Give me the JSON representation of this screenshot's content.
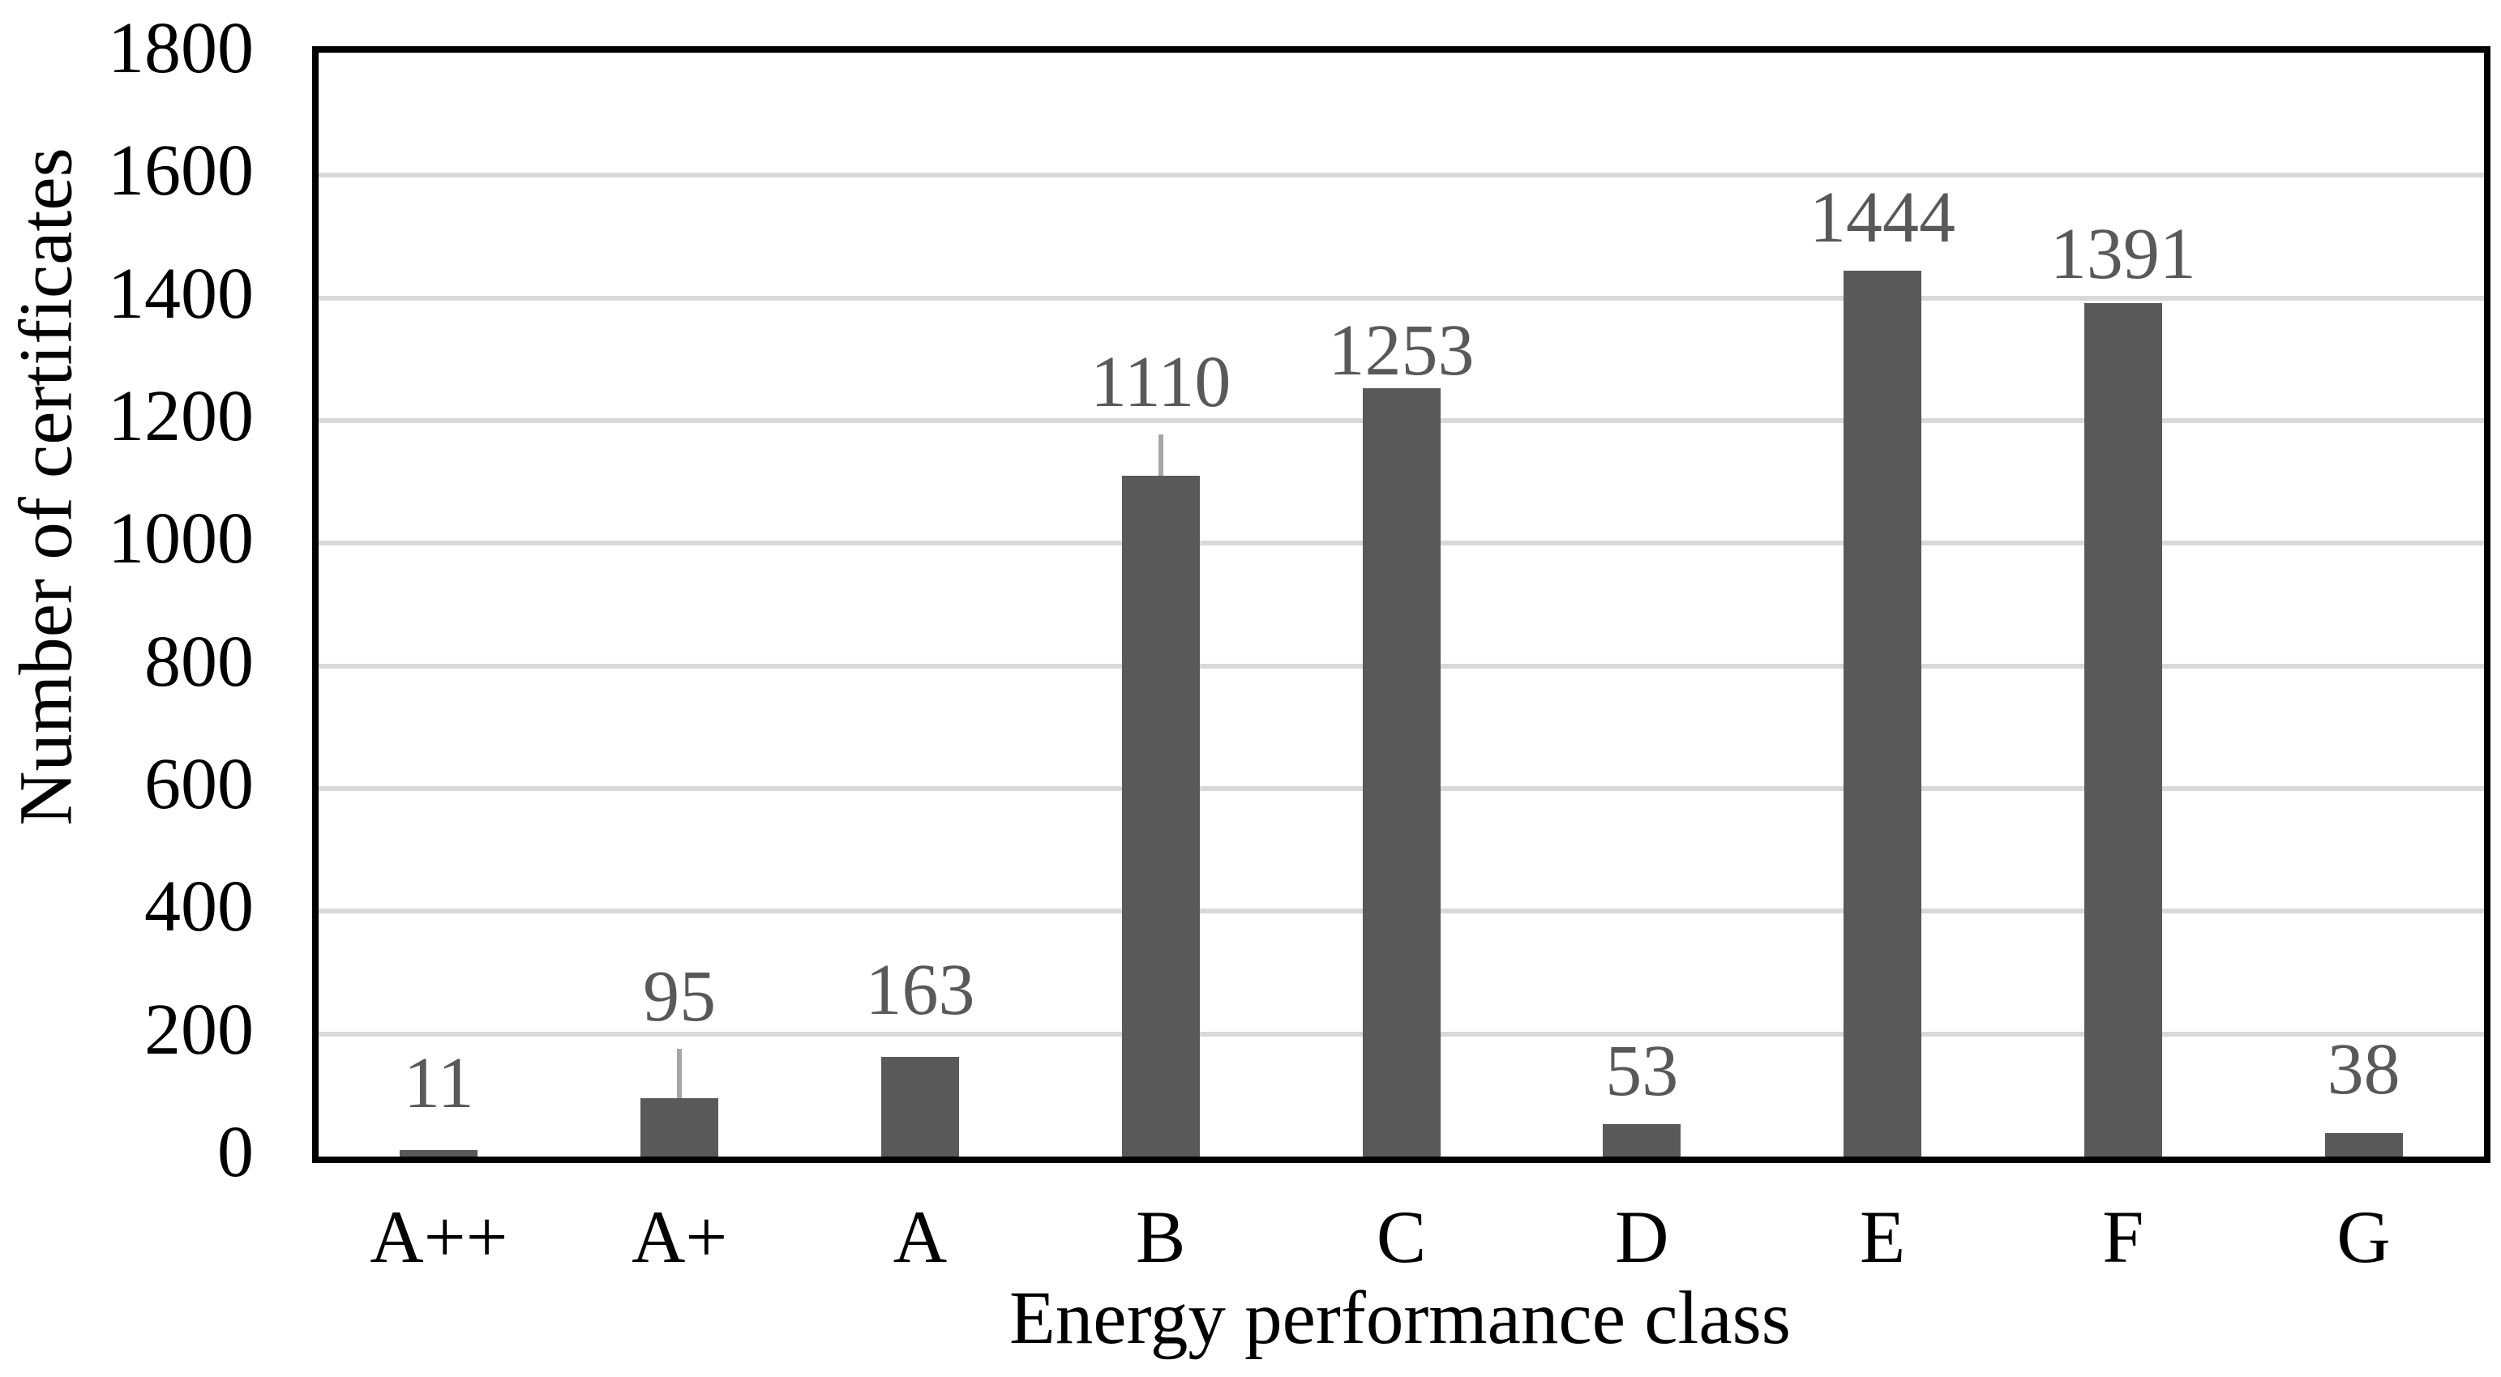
{
  "figure": {
    "background": "#ffffff",
    "bar_color": "#595959",
    "data_label_color": "#595959",
    "gridline_color": "#d9d9d9",
    "leader_line_color": "#a6a6a6",
    "axis_color": "#000000",
    "text_color": "#000000"
  },
  "chart_data": {
    "type": "bar",
    "title": "",
    "xlabel": "Energy performance class",
    "ylabel": "Number of certificates",
    "categories": [
      "A++",
      "A+",
      "A",
      "B",
      "C",
      "D",
      "E",
      "F",
      "G"
    ],
    "values": [
      11,
      95,
      163,
      1110,
      1253,
      53,
      1444,
      1391,
      38
    ],
    "ylim": [
      0,
      1800
    ],
    "ytick_step": 200,
    "yticks": [
      0,
      200,
      400,
      600,
      800,
      1000,
      1200,
      1400,
      1600,
      1800
    ],
    "grid": true,
    "legend": false,
    "points": [
      {
        "category": "A++",
        "value": 11,
        "label": "11",
        "label_gap": 47,
        "leader": false
      },
      {
        "category": "A+",
        "value": 95,
        "label": "95",
        "label_gap": 90,
        "leader": true
      },
      {
        "category": "A",
        "value": 163,
        "label": "163",
        "label_gap": 47,
        "leader": false
      },
      {
        "category": "B",
        "value": 1110,
        "label": "1110",
        "label_gap": 80,
        "leader": true
      },
      {
        "category": "C",
        "value": 1253,
        "label": "1253",
        "label_gap": 11,
        "leader": false
      },
      {
        "category": "D",
        "value": 53,
        "label": "53",
        "label_gap": 30,
        "leader": false
      },
      {
        "category": "E",
        "value": 1444,
        "label": "1444",
        "label_gap": 30,
        "leader": false
      },
      {
        "category": "F",
        "value": 1391,
        "label": "1391",
        "label_gap": 25,
        "leader": false
      },
      {
        "category": "G",
        "value": 38,
        "label": "38",
        "label_gap": 43,
        "leader": false
      }
    ]
  }
}
